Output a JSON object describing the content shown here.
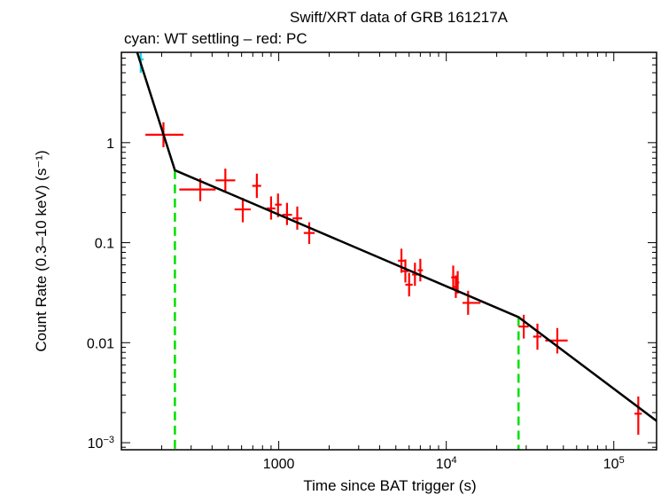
{
  "chart_data": {
    "type": "scatter",
    "title": "Swift/XRT data of GRB 161217A",
    "subtitle": "cyan: WT settling – red: PC",
    "xlabel": "Time since BAT trigger (s)",
    "ylabel": "Count Rate (0.3–10 keV) (s⁻¹)",
    "x_scale": "log",
    "y_scale": "log",
    "xlim": [
      115,
      180000
    ],
    "ylim": [
      0.00085,
      8.0
    ],
    "x_ticks": [
      {
        "value": 1000,
        "label": "1000"
      },
      {
        "value": 10000,
        "label": "10",
        "sup": "4"
      },
      {
        "value": 100000,
        "label": "10",
        "sup": "5"
      }
    ],
    "y_ticks": [
      {
        "value": 1,
        "label": "1"
      },
      {
        "value": 0.1,
        "label": "0.1"
      },
      {
        "value": 0.01,
        "label": "0.01"
      },
      {
        "value": 0.001,
        "label": "10",
        "sup": "−3"
      }
    ],
    "grid": false,
    "series": [
      {
        "name": "WT settling",
        "color": "#00d8e8",
        "points": [
          {
            "x": 150,
            "y": 6.8,
            "xlo": 145,
            "xhi": 156,
            "ylo": 5.0,
            "yhi": 9.0
          }
        ]
      },
      {
        "name": "PC",
        "color": "#ff0000",
        "points": [
          {
            "x": 205,
            "y": 1.2,
            "xlo": 160,
            "xhi": 270,
            "ylo": 0.9,
            "yhi": 1.6
          },
          {
            "x": 340,
            "y": 0.34,
            "xlo": 255,
            "xhi": 420,
            "ylo": 0.26,
            "yhi": 0.44
          },
          {
            "x": 480,
            "y": 0.42,
            "xlo": 420,
            "xhi": 550,
            "ylo": 0.32,
            "yhi": 0.55
          },
          {
            "x": 610,
            "y": 0.215,
            "xlo": 545,
            "xhi": 680,
            "ylo": 0.16,
            "yhi": 0.28
          },
          {
            "x": 740,
            "y": 0.37,
            "xlo": 695,
            "xhi": 785,
            "ylo": 0.28,
            "yhi": 0.49
          },
          {
            "x": 900,
            "y": 0.22,
            "xlo": 845,
            "xhi": 955,
            "ylo": 0.17,
            "yhi": 0.29
          },
          {
            "x": 990,
            "y": 0.24,
            "xlo": 950,
            "xhi": 1040,
            "ylo": 0.18,
            "yhi": 0.31
          },
          {
            "x": 1120,
            "y": 0.19,
            "xlo": 1050,
            "xhi": 1200,
            "ylo": 0.15,
            "yhi": 0.25
          },
          {
            "x": 1290,
            "y": 0.175,
            "xlo": 1210,
            "xhi": 1380,
            "ylo": 0.135,
            "yhi": 0.23
          },
          {
            "x": 1520,
            "y": 0.125,
            "xlo": 1410,
            "xhi": 1640,
            "ylo": 0.097,
            "yhi": 0.16
          },
          {
            "x": 5400,
            "y": 0.066,
            "xlo": 5150,
            "xhi": 5650,
            "ylo": 0.05,
            "yhi": 0.087
          },
          {
            "x": 5700,
            "y": 0.052,
            "xlo": 5450,
            "xhi": 5950,
            "ylo": 0.04,
            "yhi": 0.068
          },
          {
            "x": 6000,
            "y": 0.038,
            "xlo": 5700,
            "xhi": 6300,
            "ylo": 0.029,
            "yhi": 0.05
          },
          {
            "x": 6500,
            "y": 0.048,
            "xlo": 6250,
            "xhi": 6750,
            "ylo": 0.037,
            "yhi": 0.063
          },
          {
            "x": 7000,
            "y": 0.053,
            "xlo": 6750,
            "xhi": 7250,
            "ylo": 0.041,
            "yhi": 0.069
          },
          {
            "x": 11000,
            "y": 0.045,
            "xlo": 10700,
            "xhi": 11300,
            "ylo": 0.035,
            "yhi": 0.059
          },
          {
            "x": 11400,
            "y": 0.036,
            "xlo": 11100,
            "xhi": 11700,
            "ylo": 0.028,
            "yhi": 0.047
          },
          {
            "x": 11700,
            "y": 0.04,
            "xlo": 11450,
            "xhi": 11950,
            "ylo": 0.031,
            "yhi": 0.052
          },
          {
            "x": 13500,
            "y": 0.025,
            "xlo": 12500,
            "xhi": 16000,
            "ylo": 0.019,
            "yhi": 0.033
          },
          {
            "x": 29000,
            "y": 0.0145,
            "xlo": 27000,
            "xhi": 31000,
            "ylo": 0.011,
            "yhi": 0.019
          },
          {
            "x": 35000,
            "y": 0.0115,
            "xlo": 33000,
            "xhi": 37000,
            "ylo": 0.0085,
            "yhi": 0.0155
          },
          {
            "x": 46000,
            "y": 0.0105,
            "xlo": 39000,
            "xhi": 53000,
            "ylo": 0.0078,
            "yhi": 0.014
          },
          {
            "x": 140000,
            "y": 0.00195,
            "xlo": 133000,
            "xhi": 147000,
            "ylo": 0.0012,
            "yhi": 0.0029
          }
        ]
      }
    ],
    "model": {
      "color": "#000000",
      "points": [
        {
          "x": 115,
          "y": 25.0
        },
        {
          "x": 240,
          "y": 0.53
        },
        {
          "x": 27000,
          "y": 0.018
        },
        {
          "x": 180000,
          "y": 0.00165
        }
      ]
    },
    "breaks": {
      "color": "#00e000",
      "x": [
        240,
        27000
      ]
    }
  }
}
